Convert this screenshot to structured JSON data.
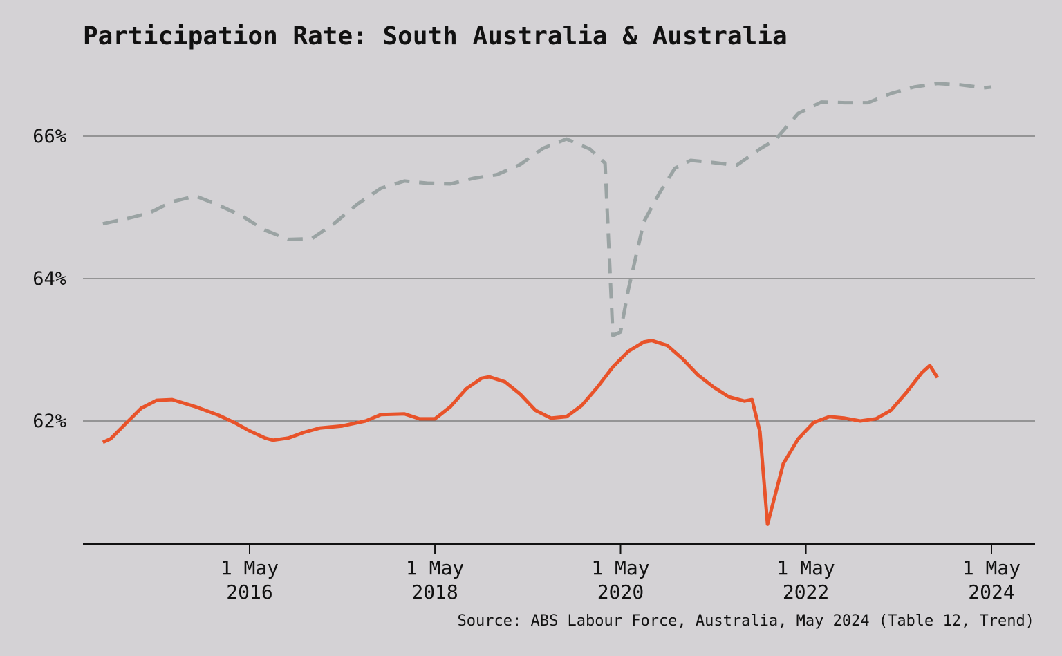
{
  "chart_data": {
    "type": "line",
    "title": "Participation Rate: South Australia & Australia",
    "source": "Source: ABS Labour Force, Australia, May 2024 (Table 12, Trend)",
    "ylim": [
      60.3,
      67.0
    ],
    "y_ticks": [
      {
        "value": 62,
        "label": "62%"
      },
      {
        "value": 64,
        "label": "64%"
      },
      {
        "value": 66,
        "label": "66%"
      }
    ],
    "x_ticks": [
      {
        "date": "2016-05-01",
        "line1": "1 May",
        "line2": "2016"
      },
      {
        "date": "2018-05-01",
        "line1": "1 May",
        "line2": "2018"
      },
      {
        "date": "2020-05-01",
        "line1": "1 May",
        "line2": "2020"
      },
      {
        "date": "2022-05-01",
        "line1": "1 May",
        "line2": "2022"
      },
      {
        "date": "2024-05-01",
        "line1": "1 May",
        "line2": "2024"
      }
    ],
    "x_range": [
      "2014-07-01",
      "2024-10-01"
    ],
    "grid": "horizontal",
    "legend": "none",
    "series": [
      {
        "color": "#9aa3a3",
        "dash": true,
        "points": [
          [
            "2014-10-01",
            64.77
          ],
          [
            "2015-01-01",
            64.84
          ],
          [
            "2015-04-01",
            64.92
          ],
          [
            "2015-07-01",
            65.08
          ],
          [
            "2015-10-01",
            65.16
          ],
          [
            "2016-01-01",
            65.03
          ],
          [
            "2016-04-01",
            64.88
          ],
          [
            "2016-07-01",
            64.68
          ],
          [
            "2016-10-01",
            64.55
          ],
          [
            "2017-01-01",
            64.56
          ],
          [
            "2017-04-01",
            64.78
          ],
          [
            "2017-07-01",
            65.05
          ],
          [
            "2017-10-01",
            65.27
          ],
          [
            "2018-01-01",
            65.37
          ],
          [
            "2018-04-01",
            65.34
          ],
          [
            "2018-07-01",
            65.33
          ],
          [
            "2018-10-01",
            65.41
          ],
          [
            "2019-01-01",
            65.46
          ],
          [
            "2019-04-01",
            65.6
          ],
          [
            "2019-07-01",
            65.83
          ],
          [
            "2019-10-01",
            65.96
          ],
          [
            "2020-01-01",
            65.82
          ],
          [
            "2020-03-01",
            65.62
          ],
          [
            "2020-04-01",
            63.2
          ],
          [
            "2020-05-01",
            63.25
          ],
          [
            "2020-06-01",
            63.85
          ],
          [
            "2020-08-01",
            64.8
          ],
          [
            "2020-10-01",
            65.2
          ],
          [
            "2020-12-01",
            65.55
          ],
          [
            "2021-02-01",
            65.66
          ],
          [
            "2021-05-01",
            65.63
          ],
          [
            "2021-08-01",
            65.59
          ],
          [
            "2021-11-01",
            65.82
          ],
          [
            "2022-01-01",
            65.95
          ],
          [
            "2022-04-01",
            66.32
          ],
          [
            "2022-07-01",
            66.48
          ],
          [
            "2022-10-01",
            66.47
          ],
          [
            "2023-01-01",
            66.47
          ],
          [
            "2023-04-01",
            66.6
          ],
          [
            "2023-07-01",
            66.69
          ],
          [
            "2023-10-01",
            66.74
          ],
          [
            "2024-01-01",
            66.72
          ],
          [
            "2024-04-01",
            66.68
          ],
          [
            "2024-05-01",
            66.69
          ]
        ]
      },
      {
        "color": "#e8532a",
        "dash": false,
        "points": [
          [
            "2014-10-01",
            61.7
          ],
          [
            "2014-11-01",
            61.75
          ],
          [
            "2015-01-01",
            61.97
          ],
          [
            "2015-03-01",
            62.18
          ],
          [
            "2015-05-01",
            62.29
          ],
          [
            "2015-07-01",
            62.3
          ],
          [
            "2015-10-01",
            62.2
          ],
          [
            "2016-01-01",
            62.08
          ],
          [
            "2016-03-01",
            61.98
          ],
          [
            "2016-05-01",
            61.86
          ],
          [
            "2016-07-01",
            61.76
          ],
          [
            "2016-08-01",
            61.73
          ],
          [
            "2016-10-01",
            61.76
          ],
          [
            "2016-12-01",
            61.84
          ],
          [
            "2017-02-01",
            61.9
          ],
          [
            "2017-05-01",
            61.93
          ],
          [
            "2017-08-01",
            62.0
          ],
          [
            "2017-10-01",
            62.09
          ],
          [
            "2018-01-01",
            62.1
          ],
          [
            "2018-03-01",
            62.03
          ],
          [
            "2018-05-01",
            62.03
          ],
          [
            "2018-07-01",
            62.2
          ],
          [
            "2018-09-01",
            62.45
          ],
          [
            "2018-11-01",
            62.6
          ],
          [
            "2018-12-01",
            62.62
          ],
          [
            "2019-02-01",
            62.55
          ],
          [
            "2019-04-01",
            62.38
          ],
          [
            "2019-06-01",
            62.15
          ],
          [
            "2019-08-01",
            62.04
          ],
          [
            "2019-10-01",
            62.06
          ],
          [
            "2019-12-01",
            62.22
          ],
          [
            "2020-02-01",
            62.48
          ],
          [
            "2020-04-01",
            62.76
          ],
          [
            "2020-06-01",
            62.98
          ],
          [
            "2020-08-01",
            63.11
          ],
          [
            "2020-09-01",
            63.13
          ],
          [
            "2020-11-01",
            63.06
          ],
          [
            "2021-01-01",
            62.87
          ],
          [
            "2021-03-01",
            62.65
          ],
          [
            "2021-05-01",
            62.48
          ],
          [
            "2021-07-01",
            62.34
          ],
          [
            "2021-09-01",
            62.28
          ],
          [
            "2021-10-01",
            62.3
          ],
          [
            "2021-11-01",
            61.85
          ],
          [
            "2021-12-01",
            60.55
          ],
          [
            "2022-02-01",
            61.4
          ],
          [
            "2022-04-01",
            61.75
          ],
          [
            "2022-06-01",
            61.98
          ],
          [
            "2022-08-01",
            62.06
          ],
          [
            "2022-10-01",
            62.04
          ],
          [
            "2022-12-01",
            62.0
          ],
          [
            "2023-02-01",
            62.03
          ],
          [
            "2023-04-01",
            62.15
          ],
          [
            "2023-06-01",
            62.4
          ],
          [
            "2023-08-01",
            62.68
          ],
          [
            "2023-09-01",
            62.78
          ],
          [
            "2023-10-01",
            62.61
          ]
        ]
      }
    ]
  }
}
